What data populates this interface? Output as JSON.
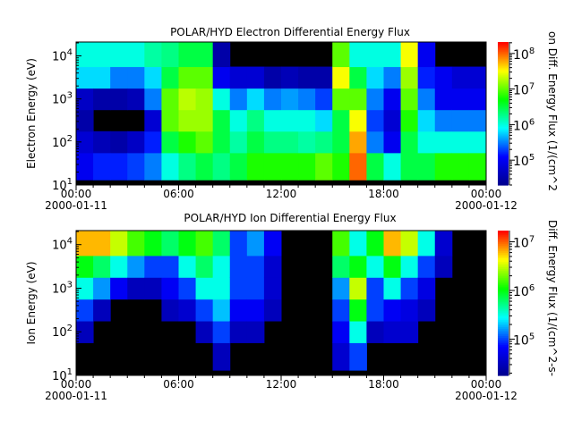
{
  "chart_data": [
    {
      "type": "heatmap",
      "title": "POLAR/HYD  Electron Differential Energy Flux",
      "ylabel": "Electron Energy (eV)",
      "colorbar_label": "on Diff. Energy Flux (1/(cm^2",
      "y_scale": "log",
      "ylim": [
        10,
        21000
      ],
      "y_ticks": [
        1,
        2,
        3,
        4
      ],
      "color_scale": "log",
      "clim": [
        20000,
        210000000
      ],
      "color_ticks": [
        5,
        6,
        7,
        8
      ],
      "colormap": [
        "#00008c",
        "#0000ff",
        "#00ffff",
        "#00ff00",
        "#ffff00",
        "#ff0000"
      ],
      "x_ticks": [
        {
          "time": "00:00",
          "date": "2000-01-11"
        },
        {
          "time": "06:00",
          "date": ""
        },
        {
          "time": "12:00",
          "date": ""
        },
        {
          "time": "18:00",
          "date": ""
        },
        {
          "time": "00:00",
          "date": "2000-01-12"
        }
      ],
      "x_hours": [
        0,
        1,
        2,
        3,
        4,
        5,
        6,
        7,
        8,
        9,
        10,
        11,
        12,
        13,
        14,
        15,
        16,
        17,
        18,
        19,
        20,
        21,
        22,
        23
      ],
      "energy_log10": [
        1.5,
        2.0,
        2.5,
        3.0,
        3.5,
        4.0
      ],
      "log10_flux": [
        [
          5.0,
          4.8,
          4.5,
          4.7,
          5.8,
          6.0
        ],
        [
          5.2,
          4.6,
          null,
          4.5,
          5.8,
          6.0
        ],
        [
          5.2,
          4.5,
          null,
          4.5,
          5.5,
          6.0
        ],
        [
          5.3,
          4.7,
          null,
          4.6,
          5.5,
          6.0
        ],
        [
          5.5,
          5.2,
          4.8,
          5.5,
          5.8,
          6.2
        ],
        [
          6.0,
          6.5,
          7.0,
          7.0,
          6.5,
          6.3
        ],
        [
          6.3,
          6.8,
          7.2,
          7.3,
          7.0,
          6.5
        ],
        [
          6.5,
          7.0,
          7.2,
          7.2,
          7.0,
          6.5
        ],
        [
          6.3,
          6.5,
          6.5,
          6.0,
          5.0,
          4.5
        ],
        [
          6.5,
          6.2,
          6.0,
          5.5,
          4.8,
          null
        ],
        [
          6.8,
          6.5,
          6.3,
          5.8,
          4.8,
          null
        ],
        [
          6.8,
          6.3,
          6.0,
          5.5,
          4.5,
          null
        ],
        [
          6.8,
          6.3,
          6.0,
          5.6,
          4.6,
          null
        ],
        [
          6.8,
          6.2,
          6.0,
          5.5,
          4.5,
          null
        ],
        [
          7.0,
          6.3,
          5.8,
          5.3,
          4.5,
          null
        ],
        [
          6.8,
          6.5,
          6.5,
          7.0,
          7.5,
          7.0
        ],
        [
          8.0,
          7.8,
          7.5,
          7.0,
          6.5,
          6.0
        ],
        [
          6.5,
          5.5,
          5.3,
          5.5,
          5.8,
          6.0
        ],
        [
          6.0,
          5.0,
          4.8,
          5.0,
          5.5,
          6.0
        ],
        [
          6.5,
          6.5,
          6.8,
          7.0,
          7.2,
          7.5
        ],
        [
          6.5,
          6.0,
          5.8,
          5.5,
          5.2,
          5.0
        ],
        [
          6.8,
          6.0,
          5.5,
          5.0,
          5.0,
          null
        ],
        [
          6.8,
          6.0,
          5.5,
          5.0,
          4.8,
          null
        ],
        [
          6.8,
          6.0,
          5.5,
          5.0,
          4.8,
          null
        ]
      ]
    },
    {
      "type": "heatmap",
      "title": "POLAR/HYD  Ion Differential Energy Flux",
      "ylabel": "Ion Energy (eV)",
      "colorbar_label": "Diff. Energy Flux (1/(cm^2-s-",
      "y_scale": "log",
      "ylim": [
        10,
        21000
      ],
      "y_ticks": [
        1,
        2,
        3,
        4
      ],
      "color_scale": "log",
      "clim": [
        18000,
        17000000
      ],
      "color_ticks": [
        5,
        6,
        7
      ],
      "colormap": [
        "#00008c",
        "#0000ff",
        "#00ffff",
        "#00ff00",
        "#ffff00",
        "#ff0000"
      ],
      "x_ticks": [
        {
          "time": "00:00",
          "date": "2000-01-11"
        },
        {
          "time": "06:00",
          "date": ""
        },
        {
          "time": "12:00",
          "date": ""
        },
        {
          "time": "18:00",
          "date": ""
        },
        {
          "time": "00:00",
          "date": "2000-01-12"
        }
      ],
      "x_hours": [
        0,
        1,
        2,
        3,
        4,
        5,
        6,
        7,
        8,
        9,
        10,
        11,
        12,
        13,
        14,
        15,
        16,
        17,
        18,
        19,
        20,
        21,
        22,
        23
      ],
      "energy_log10": [
        1.5,
        2.0,
        2.5,
        3.0,
        3.5,
        4.0
      ],
      "log10_flux": [
        [
          null,
          4.5,
          5.0,
          5.5,
          6.0,
          6.8
        ],
        [
          null,
          null,
          4.5,
          5.2,
          5.8,
          6.8
        ],
        [
          null,
          null,
          null,
          4.8,
          5.5,
          6.5
        ],
        [
          null,
          null,
          null,
          4.5,
          5.2,
          6.2
        ],
        [
          null,
          null,
          null,
          4.5,
          5.0,
          6.0
        ],
        [
          null,
          null,
          4.5,
          4.8,
          5.0,
          5.8
        ],
        [
          null,
          null,
          4.6,
          5.0,
          5.5,
          6.0
        ],
        [
          null,
          4.5,
          5.0,
          5.5,
          5.8,
          6.2
        ],
        [
          4.5,
          5.0,
          5.3,
          5.5,
          5.5,
          5.8
        ],
        [
          null,
          4.5,
          4.8,
          5.0,
          5.0,
          5.0
        ],
        [
          null,
          4.5,
          4.8,
          5.0,
          5.0,
          5.2
        ],
        [
          null,
          null,
          4.5,
          4.6,
          4.6,
          4.8
        ],
        [
          null,
          null,
          null,
          null,
          null,
          null
        ],
        [
          null,
          null,
          null,
          null,
          null,
          null
        ],
        [
          null,
          null,
          null,
          null,
          null,
          null
        ],
        [
          4.6,
          4.8,
          5.0,
          5.2,
          5.8,
          6.2
        ],
        [
          5.0,
          5.5,
          6.0,
          6.5,
          6.0,
          5.5
        ],
        [
          null,
          4.5,
          5.0,
          5.0,
          5.5,
          6.0
        ],
        [
          null,
          4.6,
          4.8,
          5.5,
          6.0,
          6.8
        ],
        [
          null,
          4.6,
          4.7,
          5.0,
          5.5,
          6.5
        ],
        [
          null,
          null,
          4.5,
          4.7,
          5.0,
          5.5
        ],
        [
          null,
          null,
          null,
          null,
          4.5,
          4.6
        ],
        [
          null,
          null,
          null,
          null,
          null,
          null
        ],
        [
          null,
          null,
          null,
          null,
          null,
          null
        ]
      ]
    }
  ]
}
